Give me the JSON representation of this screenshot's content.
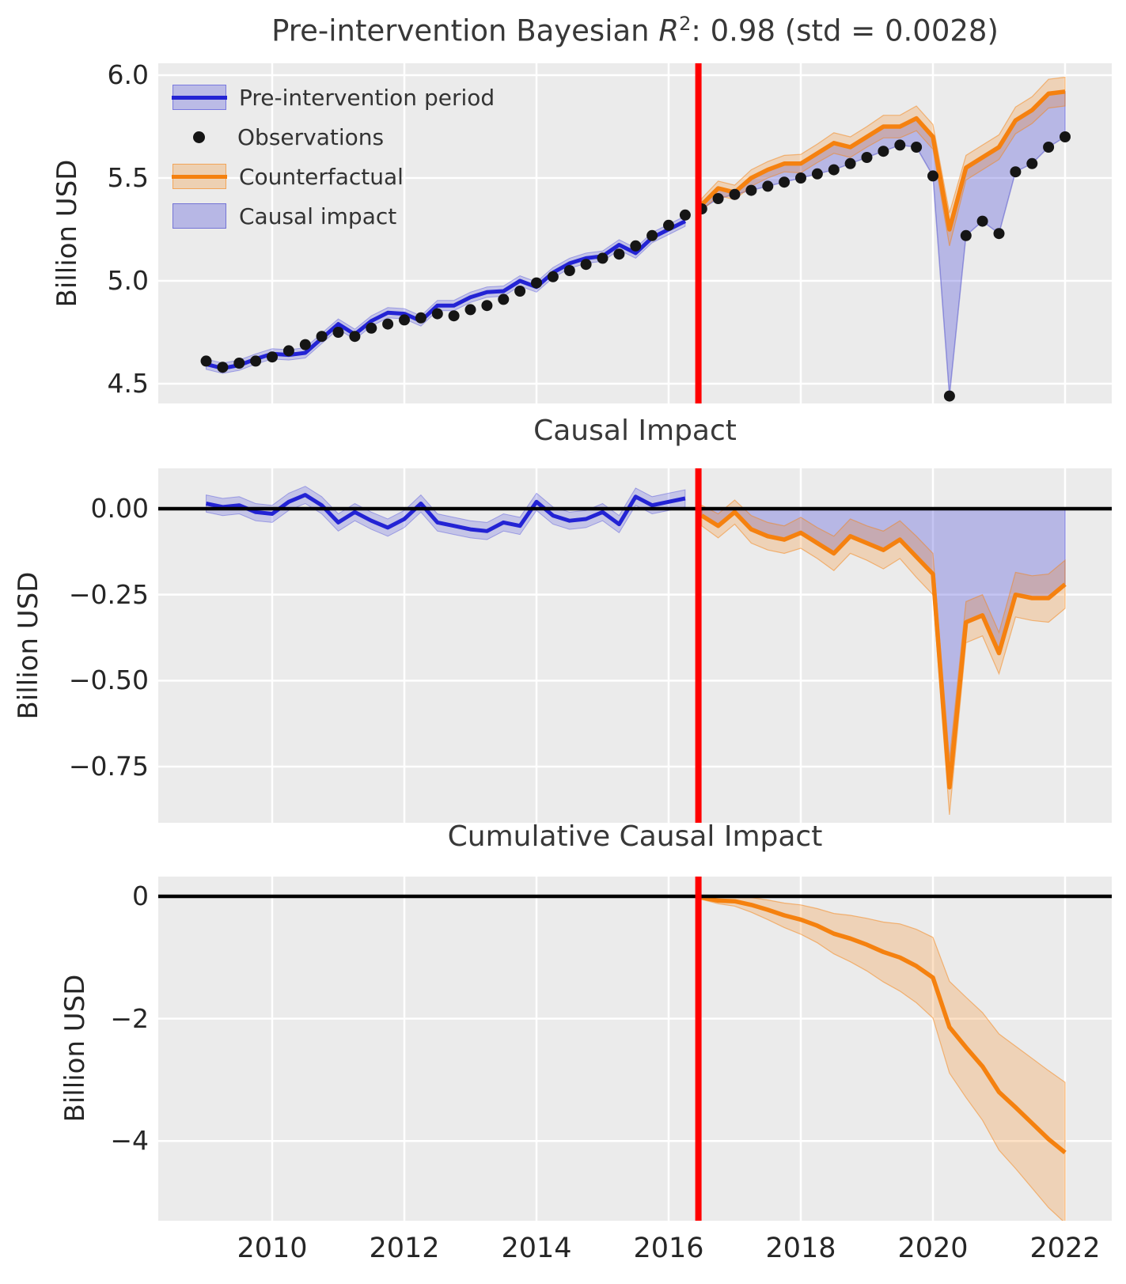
{
  "colors": {
    "blue": "#2323d4",
    "orange": "#f5810f",
    "red": "#ff0000",
    "observation": "#151515",
    "panel_bg": "#ebebeb",
    "grid": "#ffffff",
    "zero_line": "#000000",
    "text": "#262626"
  },
  "chart_data": {
    "type": "line",
    "x_axis": {
      "tick_values": [
        2010,
        2012,
        2014,
        2016,
        2018,
        2020,
        2022
      ],
      "tick_labels": [
        "2010",
        "2012",
        "2014",
        "2016",
        "2018",
        "2020",
        "2022"
      ],
      "range": [
        2008.3,
        2022.7
      ]
    },
    "intervention_year": 2016.45,
    "panels": [
      {
        "title": "Pre-intervention Bayesian R²: 0.98 (std = 0.0028)",
        "title_parts": {
          "prefix": "Pre-intervention Bayesian ",
          "r": "R",
          "sup": "2",
          "suffix": ": 0.98 (std = 0.0028)"
        },
        "ylabel": "Billion USD",
        "ytick_values": [
          6.0,
          5.5,
          5.0,
          4.5
        ],
        "ytick_labels": [
          "6.0",
          "5.5",
          "5.0",
          "4.5"
        ],
        "ylim": [
          4.4,
          6.06
        ],
        "legend": [
          {
            "swatch": "blue-line-band",
            "label": "Pre-intervention period"
          },
          {
            "swatch": "black-dot",
            "label": "Observations"
          },
          {
            "swatch": "orange-line-band",
            "label": "Counterfactual"
          },
          {
            "swatch": "blue-patch",
            "label": "Causal impact"
          }
        ],
        "series": {
          "x_pre": [
            2009.0,
            2009.25,
            2009.5,
            2009.75,
            2010.0,
            2010.25,
            2010.5,
            2010.75,
            2011.0,
            2011.25,
            2011.5,
            2011.75,
            2012.0,
            2012.25,
            2012.5,
            2012.75,
            2013.0,
            2013.25,
            2013.5,
            2013.75,
            2014.0,
            2014.25,
            2014.5,
            2014.75,
            2015.0,
            2015.25,
            2015.5,
            2015.75,
            2016.0,
            2016.25
          ],
          "observed_pre": [
            4.61,
            4.58,
            4.6,
            4.61,
            4.63,
            4.66,
            4.69,
            4.73,
            4.75,
            4.73,
            4.77,
            4.79,
            4.81,
            4.82,
            4.84,
            4.83,
            4.86,
            4.88,
            4.91,
            4.95,
            4.99,
            5.02,
            5.05,
            5.08,
            5.11,
            5.13,
            5.17,
            5.22,
            5.27,
            5.32
          ],
          "model_fit": [
            4.595,
            4.575,
            4.59,
            4.62,
            4.645,
            4.64,
            4.65,
            4.72,
            4.79,
            4.74,
            4.805,
            4.845,
            4.84,
            4.805,
            4.88,
            4.88,
            4.92,
            4.945,
            4.95,
            5.0,
            4.97,
            5.04,
            5.085,
            5.11,
            5.12,
            5.175,
            5.135,
            5.21,
            5.25,
            5.29
          ],
          "fit_band_halfwidth": 0.025,
          "x_post": [
            2016.5,
            2016.75,
            2017.0,
            2017.25,
            2017.5,
            2017.75,
            2018.0,
            2018.25,
            2018.5,
            2018.75,
            2019.0,
            2019.25,
            2019.5,
            2019.75,
            2020.0,
            2020.25,
            2020.5,
            2020.75,
            2021.0,
            2021.25,
            2021.5,
            2021.75,
            2022.0
          ],
          "observed_post": [
            5.35,
            5.4,
            5.42,
            5.44,
            5.46,
            5.48,
            5.5,
            5.52,
            5.54,
            5.57,
            5.6,
            5.63,
            5.66,
            5.65,
            5.51,
            4.44,
            5.22,
            5.29,
            5.23,
            5.53,
            5.57,
            5.65,
            5.7
          ],
          "counterfactual": [
            5.37,
            5.45,
            5.43,
            5.5,
            5.54,
            5.57,
            5.57,
            5.62,
            5.67,
            5.65,
            5.7,
            5.75,
            5.75,
            5.79,
            5.7,
            5.25,
            5.55,
            5.6,
            5.65,
            5.78,
            5.83,
            5.91,
            5.92
          ],
          "counterfactual_band_halfwidth": [
            0.03,
            0.035,
            0.035,
            0.04,
            0.04,
            0.04,
            0.045,
            0.045,
            0.05,
            0.05,
            0.05,
            0.055,
            0.055,
            0.06,
            0.06,
            0.08,
            0.06,
            0.06,
            0.06,
            0.065,
            0.065,
            0.07,
            0.07
          ]
        }
      },
      {
        "title": "Causal Impact",
        "ylabel": "Billion USD",
        "ytick_values": [
          0.0,
          -0.25,
          -0.5,
          -0.75
        ],
        "ytick_labels": [
          "0.00",
          "−0.25",
          "−0.50",
          "−0.75"
        ],
        "ylim": [
          -0.91,
          0.12
        ],
        "series": {
          "impact_pre": [
            0.015,
            0.005,
            0.01,
            -0.01,
            -0.015,
            0.02,
            0.04,
            0.01,
            -0.04,
            -0.01,
            -0.035,
            -0.055,
            -0.03,
            0.015,
            -0.04,
            -0.05,
            -0.06,
            -0.065,
            -0.04,
            -0.05,
            0.02,
            -0.02,
            -0.035,
            -0.03,
            -0.01,
            -0.045,
            0.035,
            0.01,
            0.02,
            0.03
          ],
          "band_halfwidth_pre": 0.025,
          "impact_post": [
            -0.02,
            -0.05,
            -0.01,
            -0.06,
            -0.08,
            -0.09,
            -0.07,
            -0.1,
            -0.13,
            -0.08,
            -0.1,
            -0.12,
            -0.09,
            -0.14,
            -0.19,
            -0.81,
            -0.33,
            -0.31,
            -0.42,
            -0.25,
            -0.26,
            -0.26,
            -0.22
          ],
          "band_halfwidth_post": [
            0.03,
            0.035,
            0.035,
            0.04,
            0.04,
            0.04,
            0.045,
            0.045,
            0.05,
            0.05,
            0.05,
            0.055,
            0.055,
            0.06,
            0.06,
            0.08,
            0.06,
            0.06,
            0.06,
            0.065,
            0.065,
            0.07,
            0.07
          ]
        }
      },
      {
        "title": "Cumulative Causal Impact",
        "ylabel": "Billion USD",
        "ytick_values": [
          0,
          -2,
          -4
        ],
        "ytick_labels": [
          "0",
          "−2",
          "−4"
        ],
        "ylim": [
          -5.3,
          0.32
        ],
        "series": {
          "cumulative": [
            -0.02,
            -0.07,
            -0.08,
            -0.14,
            -0.22,
            -0.31,
            -0.38,
            -0.48,
            -0.61,
            -0.69,
            -0.79,
            -0.91,
            -1.0,
            -1.14,
            -1.33,
            -2.14,
            -2.47,
            -2.78,
            -3.2,
            -3.45,
            -3.71,
            -3.97,
            -4.19
          ],
          "band_halfwidth": [
            0.03,
            0.05,
            0.08,
            0.12,
            0.16,
            0.2,
            0.24,
            0.28,
            0.33,
            0.38,
            0.43,
            0.49,
            0.55,
            0.6,
            0.66,
            0.75,
            0.82,
            0.88,
            0.95,
            1.0,
            1.06,
            1.12,
            1.15
          ]
        }
      }
    ]
  }
}
